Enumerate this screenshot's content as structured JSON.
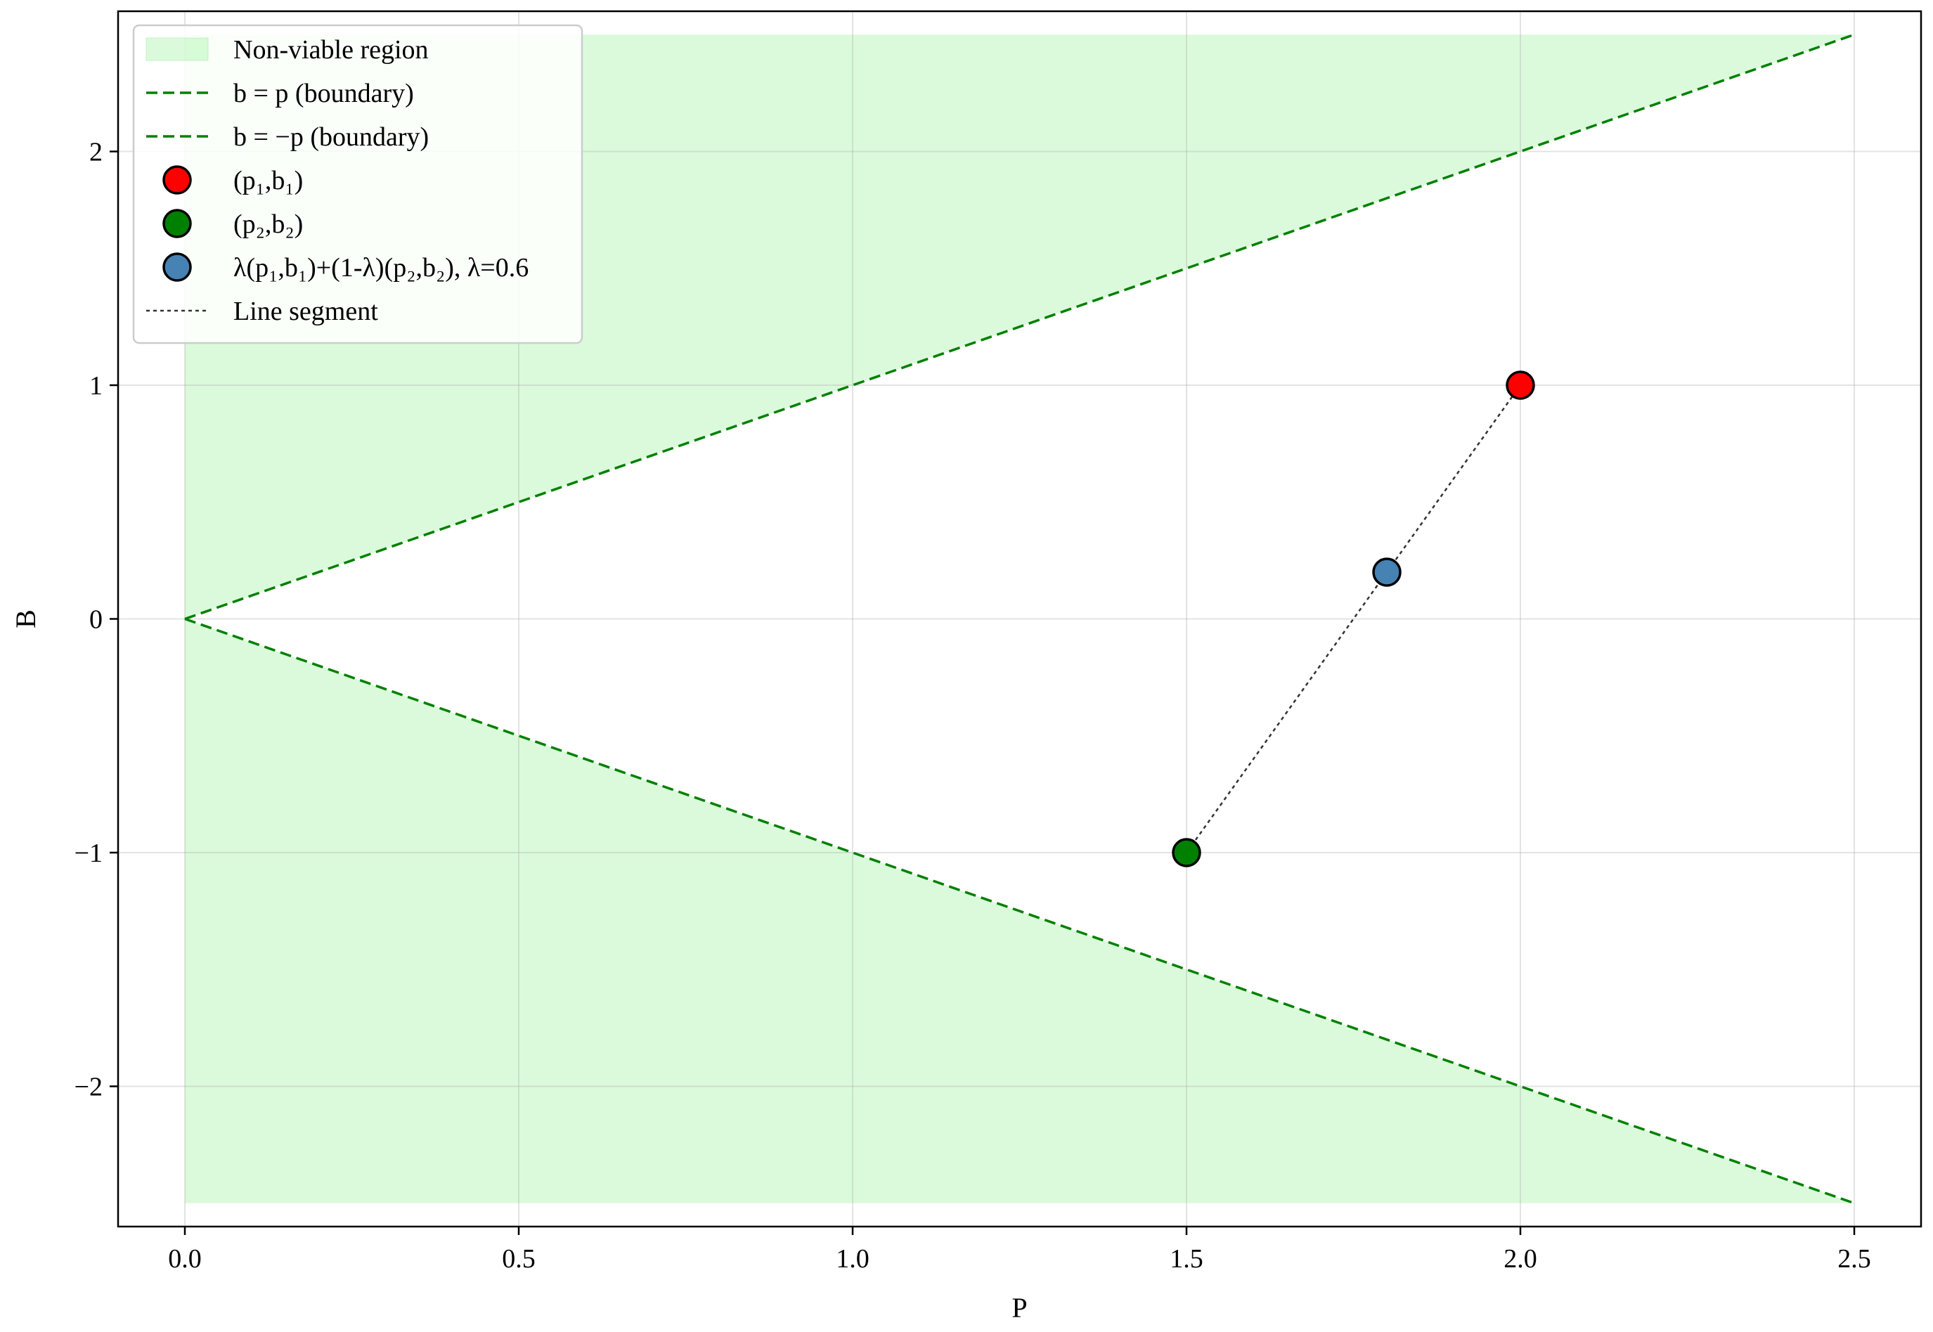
{
  "chart_data": {
    "type": "line",
    "title": "",
    "xlabel": "P",
    "ylabel": "B",
    "xlim": [
      -0.1,
      2.6
    ],
    "ylim": [
      -2.6,
      2.6
    ],
    "x_ticks": [
      0.0,
      0.5,
      1.0,
      1.5,
      2.0,
      2.5
    ],
    "x_tick_labels": [
      "0.0",
      "0.5",
      "1.0",
      "1.5",
      "2.0",
      "2.5"
    ],
    "y_ticks": [
      -2,
      -1,
      0,
      1,
      2
    ],
    "y_tick_labels": [
      "−2",
      "−1",
      "0",
      "1",
      "2"
    ],
    "grid": true,
    "legend_position": "upper-left",
    "regions": [
      {
        "name": "Non-viable region",
        "color": "#90ee90",
        "polygons": [
          [
            [
              0,
              0
            ],
            [
              0,
              2.5
            ],
            [
              2.5,
              2.5
            ]
          ],
          [
            [
              0,
              0
            ],
            [
              0,
              -2.5
            ],
            [
              2.5,
              -2.5
            ]
          ]
        ]
      }
    ],
    "series": [
      {
        "name": "b = p (boundary)",
        "style": "dashed",
        "color": "#008000",
        "x": [
          0,
          2.5
        ],
        "y": [
          0,
          2.5
        ]
      },
      {
        "name": "b = −p (boundary)",
        "style": "dashed",
        "color": "#008000",
        "x": [
          0,
          2.5
        ],
        "y": [
          0,
          -2.5
        ]
      },
      {
        "name": "Line segment",
        "style": "dotted",
        "color": "#333333",
        "x": [
          2.0,
          1.5
        ],
        "y": [
          1.0,
          -1.0
        ]
      }
    ],
    "points": [
      {
        "name": "(p₁,b₁)",
        "x": 2.0,
        "y": 1.0,
        "color": "#ff0000"
      },
      {
        "name": "(p₂,b₂)",
        "x": 1.5,
        "y": -1.0,
        "color": "#008000"
      },
      {
        "name": "λ(p₁,b₁)+(1-λ)(p₂,b₂), λ=0.6",
        "x": 1.8,
        "y": 0.2,
        "color": "#4682b4"
      }
    ],
    "legend": [
      {
        "kind": "patch",
        "label": "Non-viable region",
        "color": "#90ee90"
      },
      {
        "kind": "dashed",
        "label": "b = p (boundary)",
        "color": "#008000"
      },
      {
        "kind": "dashed",
        "label": "b = −p (boundary)",
        "color": "#008000"
      },
      {
        "kind": "marker",
        "label": "(p₁,b₁)",
        "color": "#ff0000"
      },
      {
        "kind": "marker",
        "label": "(p₂,b₂)",
        "color": "#008000"
      },
      {
        "kind": "marker",
        "label": "λ(p₁,b₁)+(1-λ)(p₂,b₂), λ=0.6",
        "color": "#4682b4"
      },
      {
        "kind": "dotted",
        "label": "Line segment",
        "color": "#333333"
      }
    ]
  }
}
